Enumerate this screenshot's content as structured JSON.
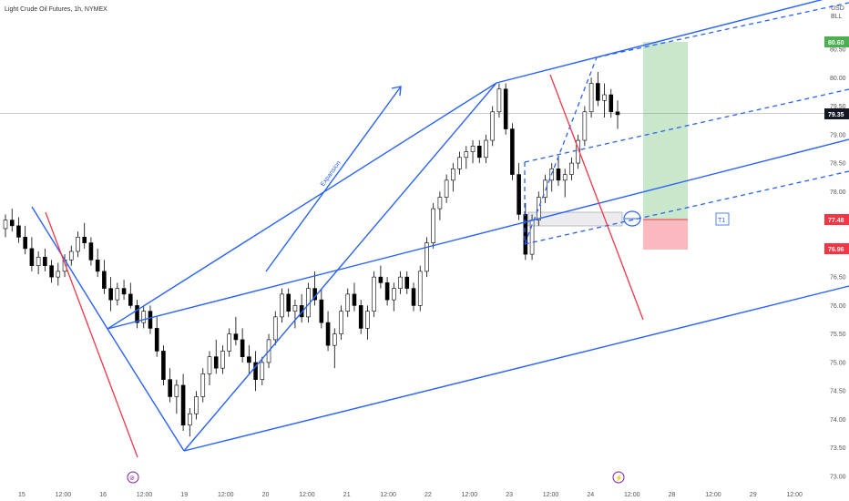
{
  "header": {
    "title": "Light Crude Oil Futures, 1h, NYMEX"
  },
  "currency": {
    "line1": "USD",
    "line2": "BLL"
  },
  "colors": {
    "up": "#000000",
    "down": "#000000",
    "channel": "#2962ff",
    "redline": "#f23645",
    "target_zone": "#4caf50",
    "stop_zone": "#f23645",
    "badge_target": "#4caf50",
    "badge_current": "#131722",
    "badge_entry": "#f23645",
    "badge_stop": "#f23645"
  },
  "annotations": {
    "expansion": "Expansion",
    "t1": "T1"
  },
  "price_badges": {
    "target": "80.60",
    "current": "79.35",
    "entry": "77.48",
    "stop": "76.96"
  },
  "events": {
    "event1": "⊘",
    "event2": "⚡"
  },
  "chart_data": {
    "type": "candlestick",
    "title": "Light Crude Oil Futures, 1h, NYMEX",
    "y_axis_ticks": [
      "80.50",
      "80.00",
      "79.50",
      "79.00",
      "78.50",
      "78.00",
      "77.50",
      "77.00",
      "76.50",
      "76.00",
      "75.50",
      "75.00",
      "74.50",
      "74.00",
      "73.50",
      "73.00"
    ],
    "x_axis_ticks": [
      "15",
      "12:00",
      "16",
      "12:00",
      "19",
      "12:00",
      "20",
      "12:00",
      "21",
      "12:00",
      "22",
      "12:00",
      "23",
      "12:00",
      "24",
      "12:00",
      "28",
      "12:00",
      "29",
      "12:00"
    ],
    "ylim": [
      73.0,
      80.6
    ],
    "candles": [
      [
        77.35,
        77.6,
        77.2,
        77.5
      ],
      [
        77.5,
        77.7,
        77.3,
        77.4
      ],
      [
        77.4,
        77.55,
        77.1,
        77.2
      ],
      [
        77.2,
        77.4,
        76.9,
        77.0
      ],
      [
        77.0,
        77.2,
        76.6,
        76.7
      ],
      [
        76.7,
        76.95,
        76.55,
        76.85
      ],
      [
        76.85,
        77.0,
        76.6,
        76.7
      ],
      [
        76.7,
        76.8,
        76.4,
        76.5
      ],
      [
        76.5,
        76.75,
        76.35,
        76.6
      ],
      [
        76.6,
        76.9,
        76.5,
        76.8
      ],
      [
        76.8,
        77.05,
        76.7,
        76.95
      ],
      [
        76.95,
        77.3,
        76.85,
        77.2
      ],
      [
        77.2,
        77.45,
        77.0,
        77.1
      ],
      [
        77.1,
        77.2,
        76.7,
        76.8
      ],
      [
        76.8,
        77.0,
        76.5,
        76.6
      ],
      [
        76.6,
        76.8,
        76.2,
        76.3
      ],
      [
        76.3,
        76.5,
        75.9,
        76.1
      ],
      [
        76.1,
        76.4,
        76.0,
        76.3
      ],
      [
        76.3,
        76.45,
        76.1,
        76.2
      ],
      [
        76.2,
        76.4,
        75.95,
        76.0
      ],
      [
        76.0,
        76.1,
        75.6,
        75.7
      ],
      [
        75.7,
        76.0,
        75.6,
        75.9
      ],
      [
        75.9,
        76.0,
        75.5,
        75.6
      ],
      [
        75.6,
        75.8,
        75.1,
        75.2
      ],
      [
        75.2,
        75.3,
        74.6,
        74.7
      ],
      [
        74.7,
        74.9,
        74.3,
        74.4
      ],
      [
        74.4,
        74.7,
        74.1,
        74.6
      ],
      [
        74.6,
        74.8,
        73.8,
        73.9
      ],
      [
        73.9,
        74.2,
        73.7,
        74.1
      ],
      [
        74.1,
        74.5,
        74.0,
        74.4
      ],
      [
        74.4,
        74.9,
        74.3,
        74.8
      ],
      [
        74.8,
        75.2,
        74.6,
        75.1
      ],
      [
        75.1,
        75.4,
        74.8,
        74.9
      ],
      [
        74.9,
        75.3,
        74.8,
        75.2
      ],
      [
        75.2,
        75.6,
        75.1,
        75.5
      ],
      [
        75.5,
        75.8,
        75.3,
        75.4
      ],
      [
        75.4,
        75.6,
        75.0,
        75.1
      ],
      [
        75.1,
        75.3,
        74.8,
        75.0
      ],
      [
        75.0,
        75.2,
        74.5,
        74.7
      ],
      [
        74.7,
        75.1,
        74.6,
        75.0
      ],
      [
        75.0,
        75.5,
        74.9,
        75.4
      ],
      [
        75.4,
        75.9,
        75.3,
        75.8
      ],
      [
        75.8,
        76.3,
        75.7,
        76.2
      ],
      [
        76.2,
        76.3,
        75.8,
        75.9
      ],
      [
        75.9,
        76.1,
        75.6,
        76.0
      ],
      [
        76.0,
        76.2,
        75.7,
        75.8
      ],
      [
        75.8,
        76.4,
        75.7,
        76.3
      ],
      [
        76.3,
        76.6,
        76.0,
        76.1
      ],
      [
        76.1,
        76.3,
        75.6,
        75.7
      ],
      [
        75.7,
        75.9,
        75.2,
        75.3
      ],
      [
        75.3,
        75.6,
        74.9,
        75.5
      ],
      [
        75.5,
        76.0,
        75.4,
        75.9
      ],
      [
        75.9,
        76.3,
        75.8,
        76.2
      ],
      [
        76.2,
        76.4,
        75.9,
        76.0
      ],
      [
        76.0,
        76.1,
        75.5,
        75.6
      ],
      [
        75.6,
        76.0,
        75.4,
        75.9
      ],
      [
        75.9,
        76.6,
        75.8,
        76.5
      ],
      [
        76.5,
        76.7,
        76.3,
        76.4
      ],
      [
        76.4,
        76.5,
        76.0,
        76.1
      ],
      [
        76.1,
        76.4,
        75.9,
        76.3
      ],
      [
        76.3,
        76.6,
        76.2,
        76.5
      ],
      [
        76.5,
        76.6,
        76.2,
        76.3
      ],
      [
        76.3,
        76.4,
        75.9,
        76.0
      ],
      [
        76.0,
        76.7,
        75.9,
        76.6
      ],
      [
        76.6,
        77.2,
        76.5,
        77.1
      ],
      [
        77.1,
        77.8,
        77.0,
        77.7
      ],
      [
        77.7,
        78.0,
        77.5,
        77.9
      ],
      [
        77.9,
        78.3,
        77.8,
        78.2
      ],
      [
        78.2,
        78.5,
        78.0,
        78.4
      ],
      [
        78.4,
        78.7,
        78.3,
        78.6
      ],
      [
        78.6,
        78.8,
        78.4,
        78.7
      ],
      [
        78.7,
        78.9,
        78.5,
        78.8
      ],
      [
        78.8,
        78.9,
        78.5,
        78.6
      ],
      [
        78.6,
        79.0,
        78.5,
        78.9
      ],
      [
        78.9,
        79.5,
        78.8,
        79.4
      ],
      [
        79.4,
        79.9,
        79.3,
        79.8
      ],
      [
        79.8,
        79.9,
        79.0,
        79.1
      ],
      [
        79.1,
        79.2,
        78.2,
        78.3
      ],
      [
        78.3,
        78.5,
        77.5,
        77.6
      ],
      [
        77.6,
        77.8,
        76.8,
        76.9
      ],
      [
        76.9,
        77.6,
        76.8,
        77.5
      ],
      [
        77.5,
        78.0,
        77.4,
        77.9
      ],
      [
        77.9,
        78.3,
        77.8,
        78.2
      ],
      [
        78.2,
        78.5,
        78.0,
        78.4
      ],
      [
        78.4,
        78.6,
        78.1,
        78.2
      ],
      [
        78.2,
        78.4,
        77.9,
        78.3
      ],
      [
        78.3,
        78.6,
        78.2,
        78.5
      ],
      [
        78.5,
        79.0,
        78.4,
        78.9
      ],
      [
        78.9,
        79.5,
        78.8,
        79.4
      ],
      [
        79.4,
        80.0,
        79.3,
        79.9
      ],
      [
        79.9,
        80.1,
        79.5,
        79.6
      ],
      [
        79.6,
        79.9,
        79.3,
        79.7
      ],
      [
        79.7,
        79.8,
        79.3,
        79.4
      ],
      [
        79.4,
        79.6,
        79.1,
        79.35
      ]
    ],
    "channel_bounds_note": "rising channel + pitchfork lines drawn over price",
    "levels": {
      "target": 80.6,
      "current": 79.35,
      "entry": 77.48,
      "stop": 76.96
    }
  }
}
